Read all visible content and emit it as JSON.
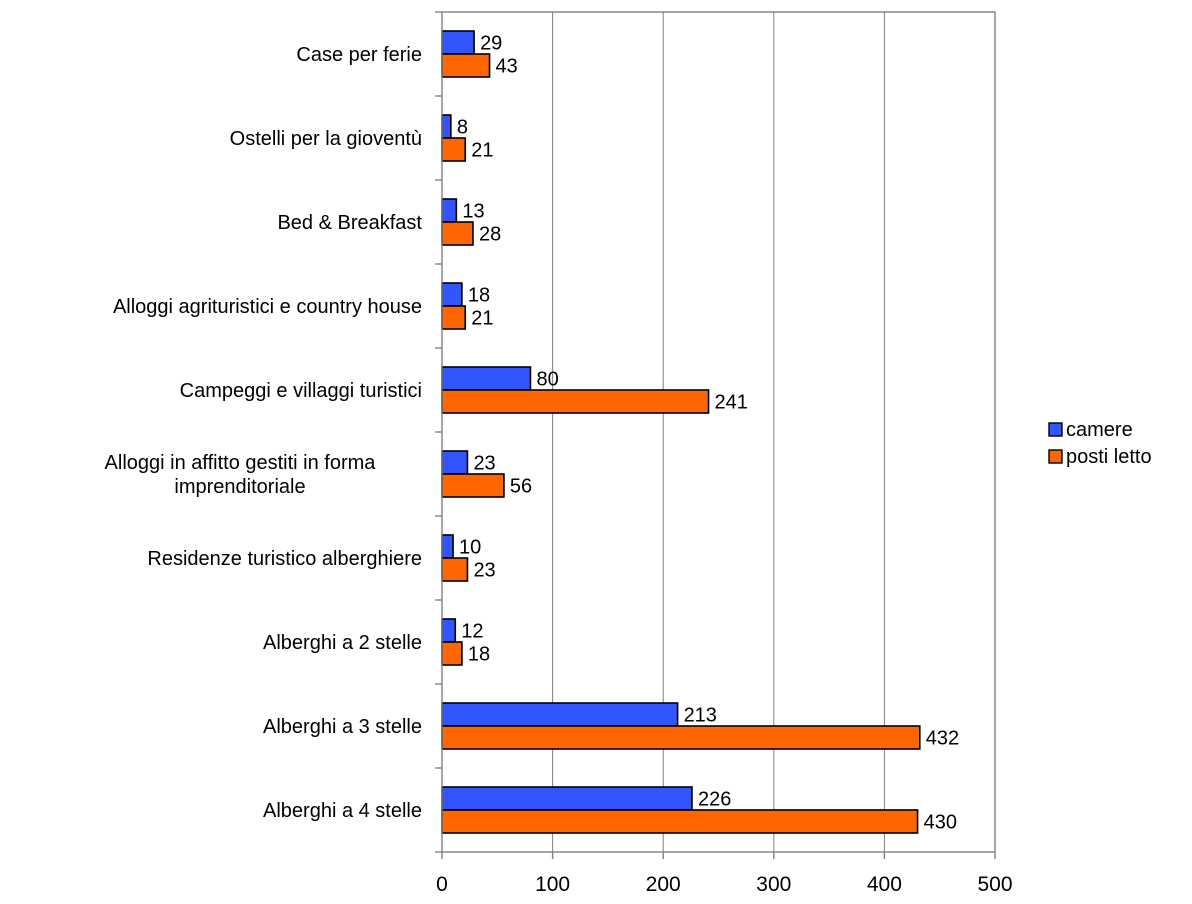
{
  "chart_data": {
    "type": "bar",
    "orientation": "horizontal",
    "categories": [
      "Case per ferie",
      "Ostelli per la gioventù",
      "Bed & Breakfast",
      "Alloggi agrituristici e country house",
      "Campeggi e villaggi turistici",
      "Alloggi in affitto gestiti in forma imprenditoriale",
      "Residenze turistico alberghiere",
      "Alberghi a 2 stelle",
      "Alberghi a 3 stelle",
      "Alberghi a 4 stelle"
    ],
    "series": [
      {
        "name": "camere",
        "color": "#3355ff",
        "values": [
          29,
          8,
          13,
          18,
          80,
          23,
          10,
          12,
          213,
          226
        ]
      },
      {
        "name": "posti letto",
        "color": "#ff6600",
        "values": [
          43,
          21,
          28,
          21,
          241,
          56,
          23,
          18,
          432,
          430
        ]
      }
    ],
    "x_ticks": [
      "0",
      "100",
      "200",
      "300",
      "400",
      "500"
    ],
    "xlim": [
      0,
      500
    ],
    "grid": "vertical",
    "legend_position": "right",
    "data_labels": true
  }
}
